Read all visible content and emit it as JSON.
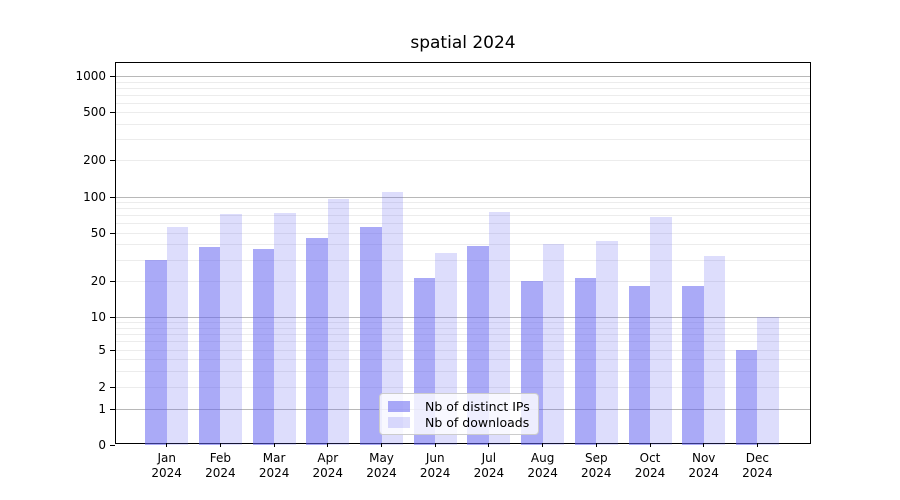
{
  "title": "spatial 2024",
  "legend": {
    "items": [
      {
        "label": "Nb of distinct IPs",
        "color": "rgba(100,100,240,0.55)"
      },
      {
        "label": "Nb of downloads",
        "color": "rgba(100,100,240,0.22)"
      }
    ]
  },
  "axes": {
    "y_tick_labels": [
      "1000",
      "500",
      "200",
      "100",
      "50",
      "20",
      "10",
      "5",
      "2",
      "1",
      "0"
    ],
    "x_tick_months": [
      "Jan",
      "Feb",
      "Mar",
      "Apr",
      "May",
      "Jun",
      "Jul",
      "Aug",
      "Sep",
      "Oct",
      "Nov",
      "Dec"
    ],
    "x_tick_year": "2024"
  },
  "colors": {
    "bar_distinct_ips": "rgba(100,100,240,0.55)",
    "bar_downloads": "rgba(100,100,240,0.22)",
    "grid_major": "#b8b8b8",
    "grid_minor": "#ececec",
    "axis": "#000000",
    "background": "#ffffff"
  },
  "chart_data": {
    "type": "bar",
    "title": "spatial 2024",
    "categories": [
      "Jan 2024",
      "Feb 2024",
      "Mar 2024",
      "Apr 2024",
      "May 2024",
      "Jun 2024",
      "Jul 2024",
      "Aug 2024",
      "Sep 2024",
      "Oct 2024",
      "Nov 2024",
      "Dec 2024"
    ],
    "series": [
      {
        "name": "Nb of distinct IPs",
        "values": [
          30,
          38,
          37,
          45,
          56,
          21,
          39,
          20,
          21,
          18,
          18,
          5
        ]
      },
      {
        "name": "Nb of downloads",
        "values": [
          56,
          72,
          73,
          96,
          110,
          34,
          74,
          40,
          43,
          68,
          32,
          10
        ]
      }
    ],
    "xlabel": "",
    "ylabel": "",
    "yscale": "log (0 at baseline)",
    "yticks": [
      1000,
      500,
      200,
      100,
      50,
      20,
      10,
      5,
      2,
      1,
      0
    ],
    "minor_gridlines": [
      2,
      3,
      4,
      5,
      6,
      7,
      8,
      9,
      20,
      30,
      40,
      50,
      60,
      70,
      80,
      90,
      200,
      300,
      400,
      500,
      600,
      700,
      800,
      900
    ],
    "major_gridlines": [
      1,
      10,
      100,
      1000
    ],
    "ylim": [
      0,
      1300
    ],
    "grid": true,
    "legend_position": "lower center inside plot"
  }
}
